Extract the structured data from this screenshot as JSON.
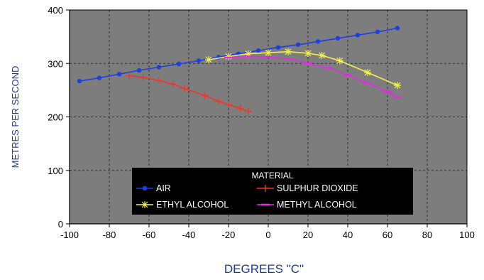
{
  "chart_data": {
    "type": "line",
    "xlabel": "DEGREES \"C\"",
    "ylabel": "METRES PER SECOND",
    "xlim": [
      -100,
      100
    ],
    "ylim": [
      0,
      400
    ],
    "xticks": [
      -100,
      -80,
      -60,
      -40,
      -20,
      0,
      20,
      40,
      60,
      80,
      100
    ],
    "yticks": [
      0,
      100,
      200,
      300,
      400
    ],
    "grid": true,
    "legend": {
      "title": "MATERIAL",
      "position": "bottom-center"
    },
    "series": [
      {
        "name": "AIR",
        "color": "#1f3ee0",
        "marker": "dot",
        "points": [
          [
            -95,
            267
          ],
          [
            -85,
            273
          ],
          [
            -75,
            280
          ],
          [
            -65,
            287
          ],
          [
            -55,
            293
          ],
          [
            -45,
            299
          ],
          [
            -35,
            305
          ],
          [
            -25,
            312
          ],
          [
            -15,
            318
          ],
          [
            -5,
            324
          ],
          [
            5,
            330
          ],
          [
            15,
            335
          ],
          [
            25,
            341
          ],
          [
            35,
            347
          ],
          [
            45,
            353
          ],
          [
            55,
            359
          ],
          [
            65,
            366
          ]
        ]
      },
      {
        "name": "SULPHUR DIOXIDE",
        "color": "#e83a2c",
        "marker": "plus",
        "points": [
          [
            -70,
            277
          ],
          [
            -63,
            274
          ],
          [
            -55,
            268
          ],
          [
            -48,
            261
          ],
          [
            -42,
            253
          ],
          [
            -32,
            240
          ],
          [
            -25,
            229
          ],
          [
            -20,
            223
          ],
          [
            -14,
            216
          ],
          [
            -10,
            210
          ]
        ]
      },
      {
        "name": "ETHYL ALCOHOL",
        "color": "#f2f04e",
        "marker": "star",
        "points": [
          [
            -30,
            307
          ],
          [
            -20,
            313
          ],
          [
            -10,
            318
          ],
          [
            0,
            320
          ],
          [
            10,
            322
          ],
          [
            20,
            319
          ],
          [
            27,
            315
          ],
          [
            36,
            305
          ],
          [
            50,
            283
          ],
          [
            65,
            259
          ]
        ]
      },
      {
        "name": "METHYL ALCOHOL",
        "color": "#e02ee0",
        "marker": "dash",
        "points": [
          [
            -20,
            311
          ],
          [
            -10,
            313
          ],
          [
            0,
            312
          ],
          [
            10,
            309
          ],
          [
            20,
            300
          ],
          [
            30,
            292
          ],
          [
            40,
            278
          ],
          [
            50,
            263
          ],
          [
            60,
            247
          ],
          [
            65,
            237
          ]
        ]
      }
    ]
  }
}
